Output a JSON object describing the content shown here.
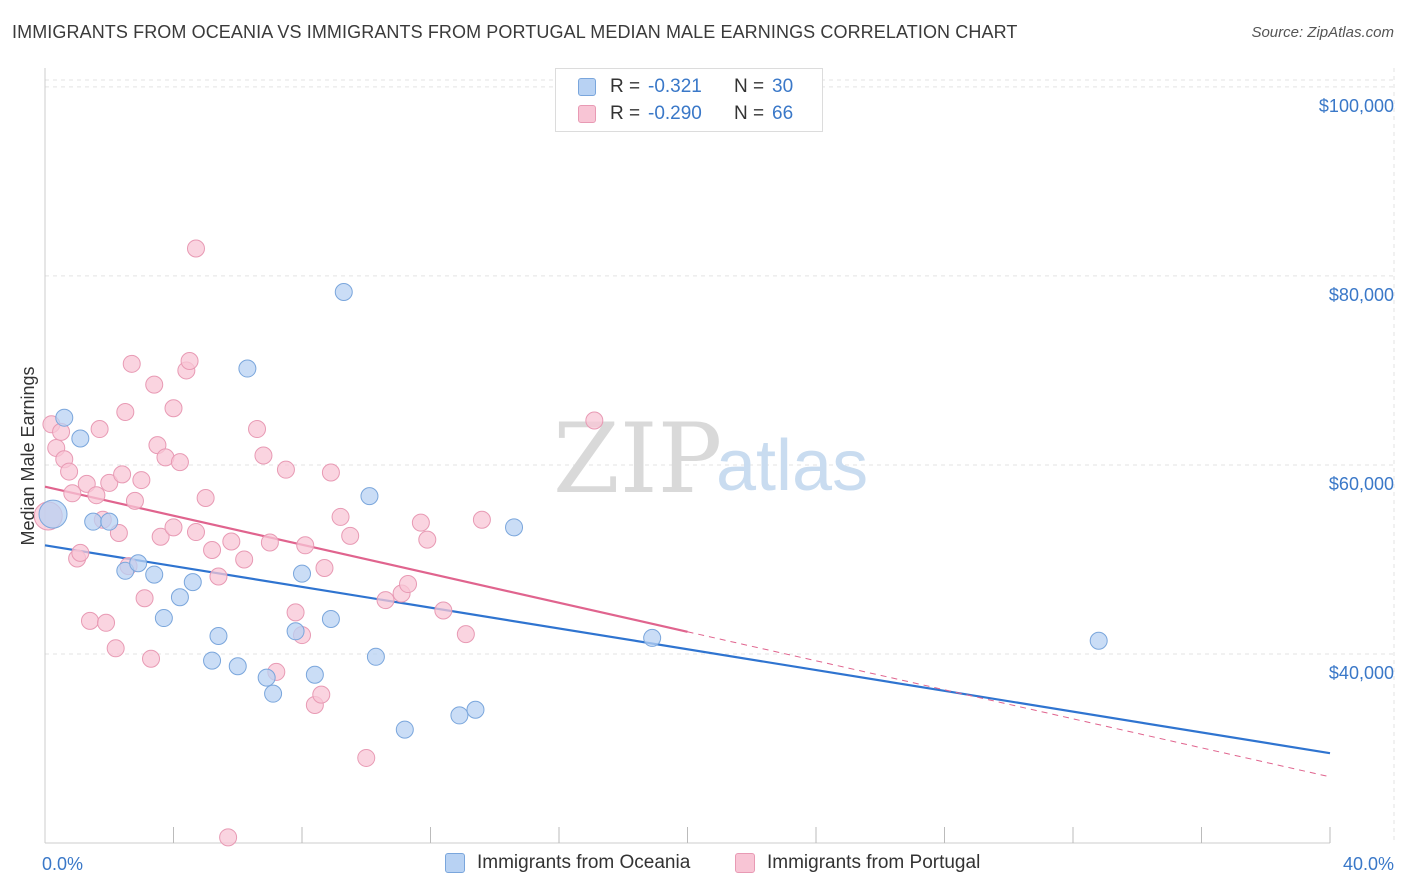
{
  "title": "IMMIGRANTS FROM OCEANIA VS IMMIGRANTS FROM PORTUGAL MEDIAN MALE EARNINGS CORRELATION CHART",
  "source": "Source: ZipAtlas.com",
  "watermark": {
    "zip": "ZIP",
    "atlas": "atlas"
  },
  "legend": {
    "rows": [
      {
        "r_label": "R =",
        "r_value": "-0.321",
        "n_label": "N =",
        "n_value": "30"
      },
      {
        "r_label": "R =",
        "r_value": "-0.290",
        "n_label": "N =",
        "n_value": "66"
      }
    ]
  },
  "colors": {
    "oceania_fill": "#b8d2f3",
    "oceania_stroke": "#7aa6dc",
    "oceania_line": "#2f74d0",
    "portugal_fill": "#f8c5d5",
    "portugal_stroke": "#e89ab4",
    "portugal_line": "#e0648e",
    "grid": "#e3e3e3",
    "axis_text": "#3a78c8"
  },
  "chart_data": {
    "type": "scatter",
    "title": "IMMIGRANTS FROM OCEANIA VS IMMIGRANTS FROM PORTUGAL MEDIAN MALE EARNINGS CORRELATION CHART",
    "xlabel": "",
    "ylabel": "Median Male Earnings",
    "xlim": [
      0,
      40
    ],
    "ylim": [
      20000,
      102000
    ],
    "x_tick_labels": [
      "0.0%",
      "40.0%"
    ],
    "y_ticks": [
      40000,
      60000,
      80000,
      100000
    ],
    "y_tick_labels": [
      "$40,000",
      "$60,000",
      "$80,000",
      "$100,000"
    ],
    "series": [
      {
        "name": "Immigrants from Oceania",
        "r": -0.321,
        "n": 30,
        "trend": {
          "x0": 0,
          "y0": 51500,
          "x1": 40,
          "y1": 29500,
          "solid_until": 40
        },
        "points": [
          {
            "x": 0.25,
            "y": 54800,
            "big": true
          },
          {
            "x": 0.6,
            "y": 65000
          },
          {
            "x": 1.1,
            "y": 62800
          },
          {
            "x": 1.5,
            "y": 54000
          },
          {
            "x": 2.0,
            "y": 54000
          },
          {
            "x": 2.5,
            "y": 48800
          },
          {
            "x": 2.9,
            "y": 49600
          },
          {
            "x": 3.4,
            "y": 48400
          },
          {
            "x": 3.7,
            "y": 43800
          },
          {
            "x": 4.2,
            "y": 46000
          },
          {
            "x": 4.6,
            "y": 47600
          },
          {
            "x": 5.2,
            "y": 39300
          },
          {
            "x": 5.4,
            "y": 41900
          },
          {
            "x": 6.0,
            "y": 38700
          },
          {
            "x": 6.3,
            "y": 70200
          },
          {
            "x": 6.9,
            "y": 37500
          },
          {
            "x": 7.1,
            "y": 35800
          },
          {
            "x": 7.8,
            "y": 42400
          },
          {
            "x": 8.0,
            "y": 48500
          },
          {
            "x": 8.4,
            "y": 37800
          },
          {
            "x": 8.9,
            "y": 43700
          },
          {
            "x": 9.3,
            "y": 78300
          },
          {
            "x": 10.1,
            "y": 56700
          },
          {
            "x": 10.3,
            "y": 39700
          },
          {
            "x": 11.2,
            "y": 32000
          },
          {
            "x": 12.9,
            "y": 33500
          },
          {
            "x": 13.4,
            "y": 34100
          },
          {
            "x": 14.6,
            "y": 53400
          },
          {
            "x": 18.9,
            "y": 41700
          },
          {
            "x": 32.8,
            "y": 41400
          }
        ]
      },
      {
        "name": "Immigrants from Portugal",
        "r": -0.29,
        "n": 66,
        "trend": {
          "x0": 0,
          "y0": 57700,
          "x1": 40,
          "y1": 27000,
          "solid_until": 20
        },
        "points": [
          {
            "x": 0.1,
            "y": 54600,
            "big": true
          },
          {
            "x": 0.2,
            "y": 64300
          },
          {
            "x": 0.35,
            "y": 61800
          },
          {
            "x": 0.5,
            "y": 63500
          },
          {
            "x": 0.6,
            "y": 60600
          },
          {
            "x": 0.75,
            "y": 59300
          },
          {
            "x": 0.85,
            "y": 57000
          },
          {
            "x": 1.0,
            "y": 50100
          },
          {
            "x": 1.1,
            "y": 50700
          },
          {
            "x": 1.3,
            "y": 58000
          },
          {
            "x": 1.4,
            "y": 43500
          },
          {
            "x": 1.6,
            "y": 56800
          },
          {
            "x": 1.7,
            "y": 63800
          },
          {
            "x": 1.8,
            "y": 54200
          },
          {
            "x": 1.9,
            "y": 43300
          },
          {
            "x": 2.0,
            "y": 58100
          },
          {
            "x": 2.2,
            "y": 40600
          },
          {
            "x": 2.3,
            "y": 52800
          },
          {
            "x": 2.4,
            "y": 59000
          },
          {
            "x": 2.5,
            "y": 65600
          },
          {
            "x": 2.6,
            "y": 49300
          },
          {
            "x": 2.7,
            "y": 70700
          },
          {
            "x": 2.8,
            "y": 56200
          },
          {
            "x": 3.0,
            "y": 58400
          },
          {
            "x": 3.1,
            "y": 45900
          },
          {
            "x": 3.3,
            "y": 39500
          },
          {
            "x": 3.4,
            "y": 68500
          },
          {
            "x": 3.5,
            "y": 62100
          },
          {
            "x": 3.6,
            "y": 52400
          },
          {
            "x": 3.75,
            "y": 60800
          },
          {
            "x": 4.0,
            "y": 66000
          },
          {
            "x": 4.0,
            "y": 53400
          },
          {
            "x": 4.2,
            "y": 60300
          },
          {
            "x": 4.4,
            "y": 70000
          },
          {
            "x": 4.5,
            "y": 71000
          },
          {
            "x": 4.7,
            "y": 52900
          },
          {
            "x": 4.7,
            "y": 82900
          },
          {
            "x": 5.0,
            "y": 56500
          },
          {
            "x": 5.2,
            "y": 51000
          },
          {
            "x": 5.4,
            "y": 48200
          },
          {
            "x": 5.7,
            "y": 20600
          },
          {
            "x": 5.8,
            "y": 51900
          },
          {
            "x": 6.2,
            "y": 50000
          },
          {
            "x": 6.6,
            "y": 63800
          },
          {
            "x": 6.8,
            "y": 61000
          },
          {
            "x": 7.0,
            "y": 51800
          },
          {
            "x": 7.2,
            "y": 38100
          },
          {
            "x": 7.5,
            "y": 59500
          },
          {
            "x": 7.8,
            "y": 44400
          },
          {
            "x": 8.0,
            "y": 42000
          },
          {
            "x": 8.1,
            "y": 51500
          },
          {
            "x": 8.4,
            "y": 34600
          },
          {
            "x": 8.6,
            "y": 35700
          },
          {
            "x": 8.7,
            "y": 49100
          },
          {
            "x": 8.9,
            "y": 59200
          },
          {
            "x": 9.2,
            "y": 54500
          },
          {
            "x": 9.5,
            "y": 52500
          },
          {
            "x": 10.0,
            "y": 29000
          },
          {
            "x": 10.6,
            "y": 45700
          },
          {
            "x": 11.1,
            "y": 46400
          },
          {
            "x": 11.3,
            "y": 47400
          },
          {
            "x": 11.7,
            "y": 53900
          },
          {
            "x": 11.9,
            "y": 52100
          },
          {
            "x": 12.4,
            "y": 44600
          },
          {
            "x": 13.1,
            "y": 42100
          },
          {
            "x": 13.6,
            "y": 54200
          },
          {
            "x": 17.1,
            "y": 64700
          }
        ]
      }
    ],
    "legend_position": "top-center"
  },
  "bottom_legend": {
    "oceania": "Immigrants from Oceania",
    "portugal": "Immigrants from Portugal"
  }
}
